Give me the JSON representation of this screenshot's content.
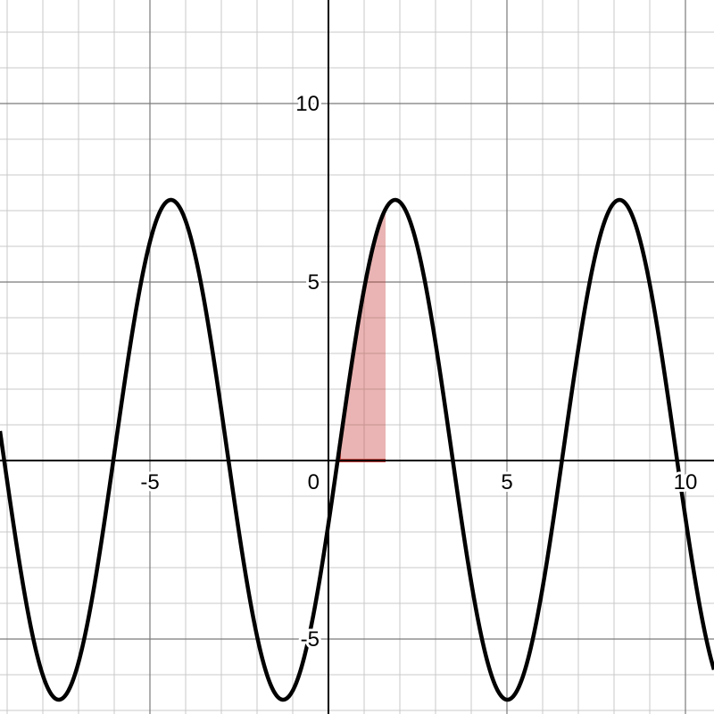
{
  "chart_data": {
    "type": "line",
    "title": "",
    "xlabel": "",
    "ylabel": "",
    "xlim": [
      -9.2,
      10.8
    ],
    "ylim": [
      -7.1,
      12.9
    ],
    "grid": true,
    "minor_step": 1,
    "major_step": 5,
    "x_ticks": [
      {
        "value": -5,
        "label": "-5"
      },
      {
        "value": 5,
        "label": "5"
      },
      {
        "value": 10,
        "label": "10"
      }
    ],
    "y_ticks": [
      {
        "value": -5,
        "label": "-5"
      },
      {
        "value": 5,
        "label": "5"
      },
      {
        "value": 10,
        "label": "10"
      }
    ],
    "origin_label": "0",
    "colors": {
      "curve": "#000000",
      "shade": "#c74440",
      "axis": "#000000",
      "grid_major": "#7a7a7a",
      "grid_minor": "#c9c9c9"
    },
    "series": [
      {
        "function": "y = 0.3 + 7 * sin(1.0 * x - 0.3)",
        "amplitude": 7,
        "frequency": 1.0,
        "phase": -0.3,
        "offset": 0.3,
        "x_range": [
          -9.2,
          10.8
        ]
      }
    ],
    "shaded_region": {
      "description": "area between the curve and the x-axis",
      "x_from": 0.3,
      "x_to": 1.6,
      "y_baseline": 0,
      "opacity": 0.4
    }
  }
}
